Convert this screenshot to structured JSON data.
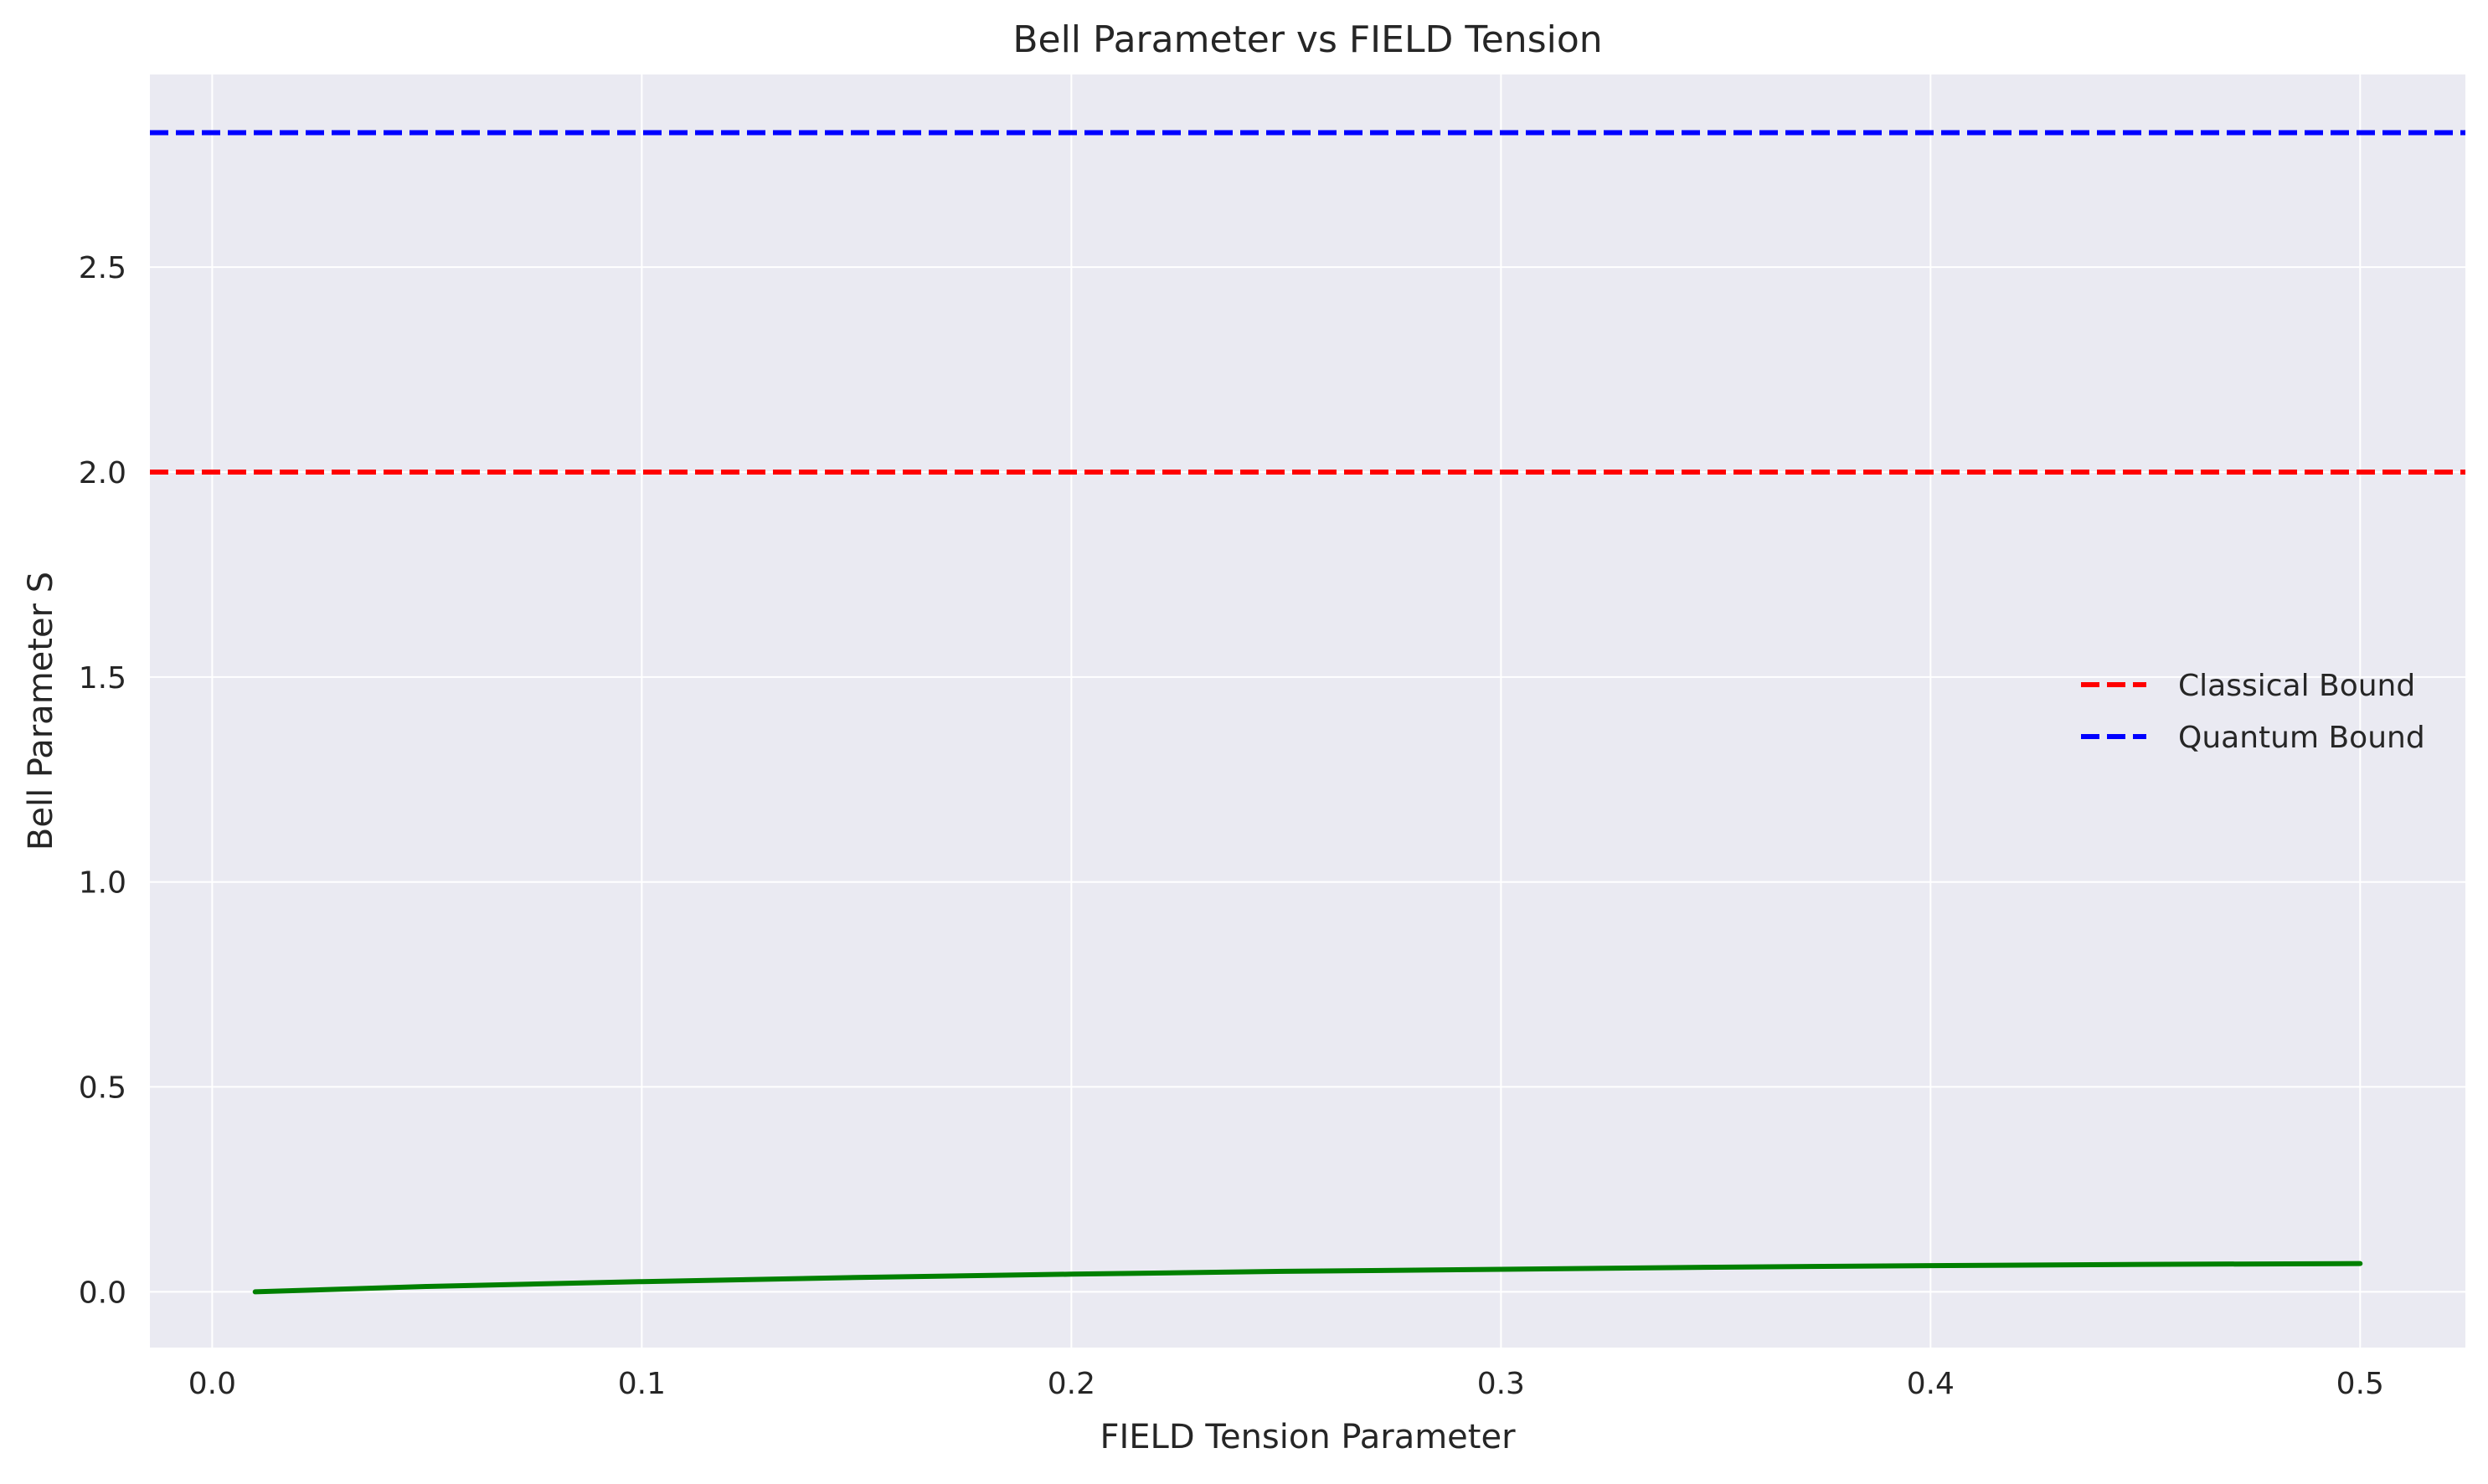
{
  "chart_data": {
    "type": "line",
    "title": "Bell Parameter vs FIELD Tension",
    "xlabel": "FIELD Tension Parameter",
    "ylabel": "Bell Parameter S",
    "xlim": [
      -0.0145,
      0.5245
    ],
    "ylim": [
      -0.136,
      2.97
    ],
    "x_ticks": [
      0.0,
      0.1,
      0.2,
      0.3,
      0.4,
      0.5
    ],
    "x_tick_labels": [
      "0.0",
      "0.1",
      "0.2",
      "0.3",
      "0.4",
      "0.5"
    ],
    "y_ticks": [
      0.0,
      0.5,
      1.0,
      1.5,
      2.0,
      2.5
    ],
    "y_tick_labels": [
      "0.0",
      "0.5",
      "1.0",
      "1.5",
      "2.0",
      "2.5"
    ],
    "grid": true,
    "legend_position": "center-right",
    "series": [
      {
        "color": "#008000",
        "style": "solid",
        "x": [
          0.01,
          0.05,
          0.1,
          0.15,
          0.2,
          0.25,
          0.3,
          0.35,
          0.4,
          0.45,
          0.5
        ],
        "y": [
          0.0,
          0.013,
          0.025,
          0.035,
          0.043,
          0.05,
          0.055,
          0.06,
          0.064,
          0.067,
          0.069
        ]
      }
    ],
    "reference_lines": [
      {
        "name": "Classical Bound",
        "y": 2.0,
        "color": "#ff0000",
        "style": "dashed"
      },
      {
        "name": "Quantum Bound",
        "y": 2.828,
        "color": "#0000ff",
        "style": "dashed"
      }
    ],
    "background": "#eaeaf2",
    "grid_color": "#ffffff"
  }
}
